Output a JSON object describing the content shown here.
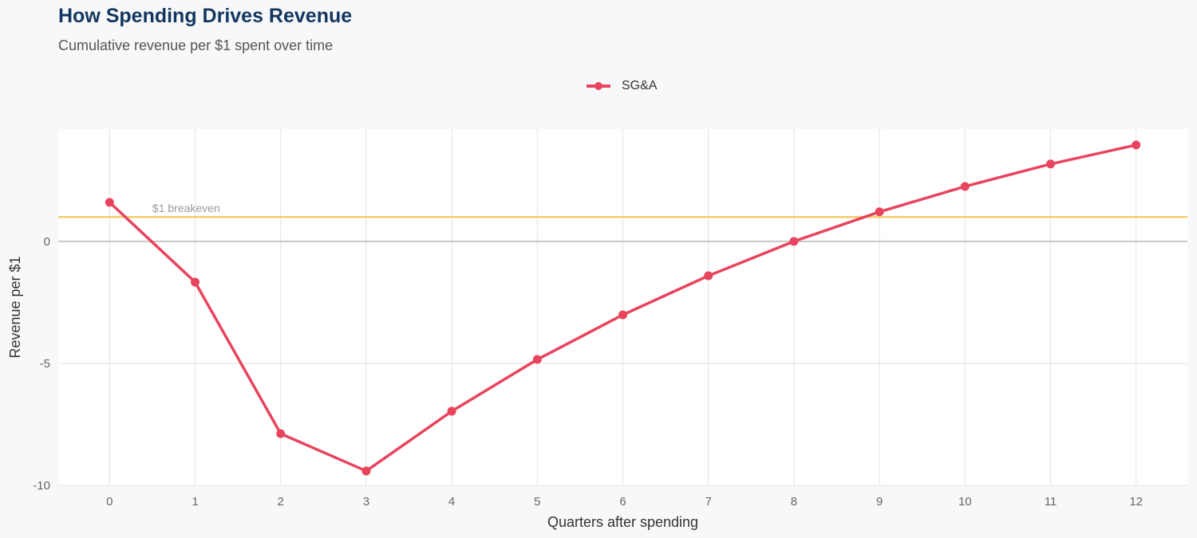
{
  "chart_data": {
    "type": "line",
    "title": "How Spending Drives Revenue",
    "subtitle": "Cumulative revenue per $1 spent over time",
    "xlabel": "Quarters after spending",
    "ylabel": "Revenue per $1",
    "x": [
      0,
      1,
      2,
      3,
      4,
      5,
      6,
      7,
      8,
      9,
      10,
      11,
      12
    ],
    "series": [
      {
        "name": "SG&A",
        "color": "#e8445e",
        "values": [
          1.6,
          -1.67,
          -7.88,
          -9.41,
          -6.96,
          -4.84,
          -3.01,
          -1.41,
          0.0,
          1.21,
          2.25,
          3.17,
          3.95
        ]
      }
    ],
    "xlim": [
      -0.6,
      12.6
    ],
    "ylim": [
      -10,
      4.6
    ],
    "yticks": [
      0,
      -5,
      -10
    ],
    "ytick_labels": [
      "0",
      "-5",
      "-10"
    ],
    "xtick_labels": [
      "0",
      "1",
      "2",
      "3",
      "4",
      "5",
      "6",
      "7",
      "8",
      "9",
      "10",
      "11",
      "12"
    ],
    "reference_line": {
      "y": 1,
      "label": "$1 breakeven",
      "color": "#f5cd6b"
    },
    "grid": true,
    "legend": "top-center"
  }
}
